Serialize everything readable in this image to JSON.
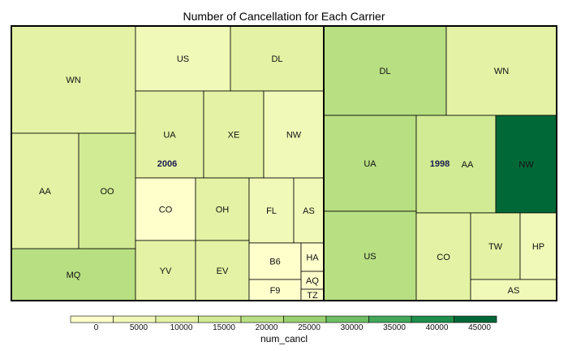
{
  "chart_data": {
    "type": "treemap",
    "title": "Number of Cancellation for Each Carrier",
    "legend": {
      "title": "num_cancl",
      "position": "bottom",
      "ticks": [
        0,
        5000,
        10000,
        15000,
        20000,
        25000,
        30000,
        35000,
        40000,
        45000
      ],
      "max": 50000,
      "colors": [
        "#ffffcc",
        "#f1f9b8",
        "#e3f2a4",
        "#d1eb94",
        "#b8df82",
        "#9ad170",
        "#6fbf64",
        "#43a85a",
        "#1e8f4c",
        "#006837"
      ]
    },
    "groups": [
      {
        "name": "2006",
        "items": [
          {
            "carrier": "WN",
            "value": 14000
          },
          {
            "carrier": "MQ",
            "value": 21000
          },
          {
            "carrier": "AA",
            "value": 12000
          },
          {
            "carrier": "OO",
            "value": 15000
          },
          {
            "carrier": "US",
            "value": 9000
          },
          {
            "carrier": "DL",
            "value": 10000
          },
          {
            "carrier": "UA",
            "value": 12000
          },
          {
            "carrier": "XE",
            "value": 12000
          },
          {
            "carrier": "NW",
            "value": 8000
          },
          {
            "carrier": "CO",
            "value": 3000
          },
          {
            "carrier": "OH",
            "value": 10000
          },
          {
            "carrier": "FL",
            "value": 7000
          },
          {
            "carrier": "AS",
            "value": 7000
          },
          {
            "carrier": "YV",
            "value": 12000
          },
          {
            "carrier": "EV",
            "value": 12000
          },
          {
            "carrier": "B6",
            "value": 3000
          },
          {
            "carrier": "HA",
            "value": 1000
          },
          {
            "carrier": "AQ",
            "value": 1500
          },
          {
            "carrier": "F9",
            "value": 2500
          },
          {
            "carrier": "TZ",
            "value": 1000
          }
        ]
      },
      {
        "name": "1998",
        "items": [
          {
            "carrier": "DL",
            "value": 20000
          },
          {
            "carrier": "WN",
            "value": 12000
          },
          {
            "carrier": "UA",
            "value": 24000
          },
          {
            "carrier": "AA",
            "value": 16000
          },
          {
            "carrier": "NW",
            "value": 49000
          },
          {
            "carrier": "US",
            "value": 21000
          },
          {
            "carrier": "CO",
            "value": 10000
          },
          {
            "carrier": "TW",
            "value": 12000
          },
          {
            "carrier": "HP",
            "value": 8000
          },
          {
            "carrier": "AS",
            "value": 9000
          }
        ]
      }
    ]
  }
}
